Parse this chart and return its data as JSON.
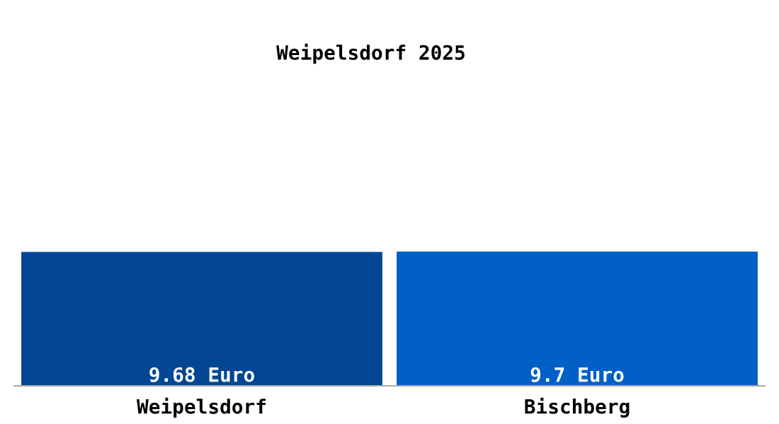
{
  "chart_data": {
    "type": "bar",
    "title": "Weipelsdorf 2025",
    "categories": [
      "Weipelsdorf",
      "Bischberg"
    ],
    "values": [
      9.68,
      9.7
    ],
    "colors": [
      "#034694",
      "#0060c8"
    ],
    "value_labels": [
      "9.68 Euro",
      "9.7 Euro"
    ]
  }
}
